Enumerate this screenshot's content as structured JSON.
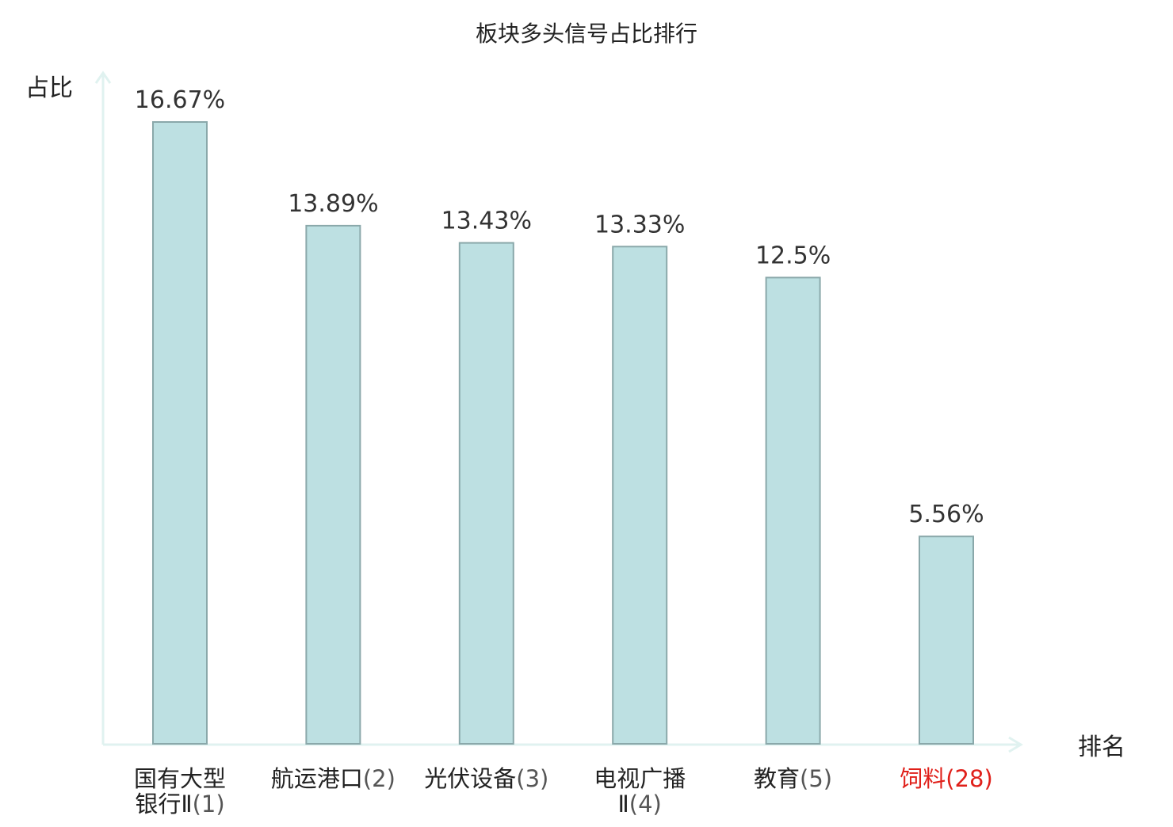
{
  "chart_data": {
    "type": "bar",
    "title": "板块多头信号占比排行",
    "ylabel": "占比",
    "xlabel": "排名",
    "ylim": [
      0,
      18
    ],
    "grid": false,
    "value_suffix": "%",
    "categories": [
      {
        "lines": [
          {
            "name": "国有大型",
            "rank": ""
          },
          {
            "name": "银行Ⅱ",
            "rank": "(1)"
          }
        ],
        "highlight": false
      },
      {
        "lines": [
          {
            "name": "航运港口",
            "rank": "(2)"
          }
        ],
        "highlight": false
      },
      {
        "lines": [
          {
            "name": "光伏设备",
            "rank": "(3)"
          }
        ],
        "highlight": false
      },
      {
        "lines": [
          {
            "name": "电视广播",
            "rank": ""
          },
          {
            "name": "Ⅱ",
            "rank": "(4)"
          }
        ],
        "highlight": false
      },
      {
        "lines": [
          {
            "name": "教育",
            "rank": "(5)"
          }
        ],
        "highlight": false
      },
      {
        "lines": [
          {
            "name": "饲料",
            "rank": "(28)"
          }
        ],
        "highlight": true
      }
    ],
    "values": [
      16.67,
      13.89,
      13.43,
      13.33,
      12.5,
      5.56
    ],
    "value_labels": [
      "16.67%",
      "13.89%",
      "13.43%",
      "13.33%",
      "12.5%",
      "5.56%"
    ],
    "colors": {
      "bar_fill": "#bde0e2",
      "bar_stroke": "#8aa8aa",
      "axis": "#e0f2f0",
      "text": "#222222",
      "value_text": "#333333",
      "rank_text": "#555555",
      "highlight": "#e0201a"
    }
  }
}
